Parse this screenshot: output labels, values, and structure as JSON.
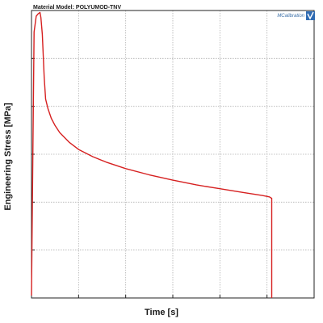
{
  "title": "Material Model: POLYUMOD-TNV",
  "badge": "MCalibration",
  "chart_data": {
    "type": "line",
    "title": "Material Model: POLYUMOD-TNV",
    "xlabel": "Time [s]",
    "ylabel": "Engineering Stress [MPa]",
    "x_ticks": [
      0,
      1,
      2,
      3,
      4,
      5
    ],
    "y_ticks": [
      0,
      1,
      2,
      3,
      4,
      5,
      6
    ],
    "xlim": [
      0,
      6
    ],
    "ylim": [
      0,
      6
    ],
    "grid": true,
    "tick_labels_shown": false,
    "series": [
      {
        "color": "#d62020",
        "x": [
          0.0,
          0.03,
          0.055,
          0.1,
          0.14,
          0.18,
          0.2,
          0.23,
          0.25,
          0.27,
          0.3,
          0.35,
          0.42,
          0.5,
          0.6,
          0.8,
          1.0,
          1.3,
          1.6,
          2.0,
          2.5,
          3.0,
          3.5,
          4.0,
          4.5,
          4.9,
          5.05,
          5.1,
          5.1
        ],
        "y": [
          0.05,
          3.1,
          5.55,
          5.88,
          5.93,
          5.96,
          5.85,
          5.5,
          5.05,
          4.6,
          4.15,
          3.95,
          3.75,
          3.6,
          3.45,
          3.25,
          3.1,
          2.95,
          2.83,
          2.7,
          2.57,
          2.46,
          2.36,
          2.28,
          2.2,
          2.14,
          2.11,
          2.08,
          0.0
        ]
      }
    ]
  }
}
